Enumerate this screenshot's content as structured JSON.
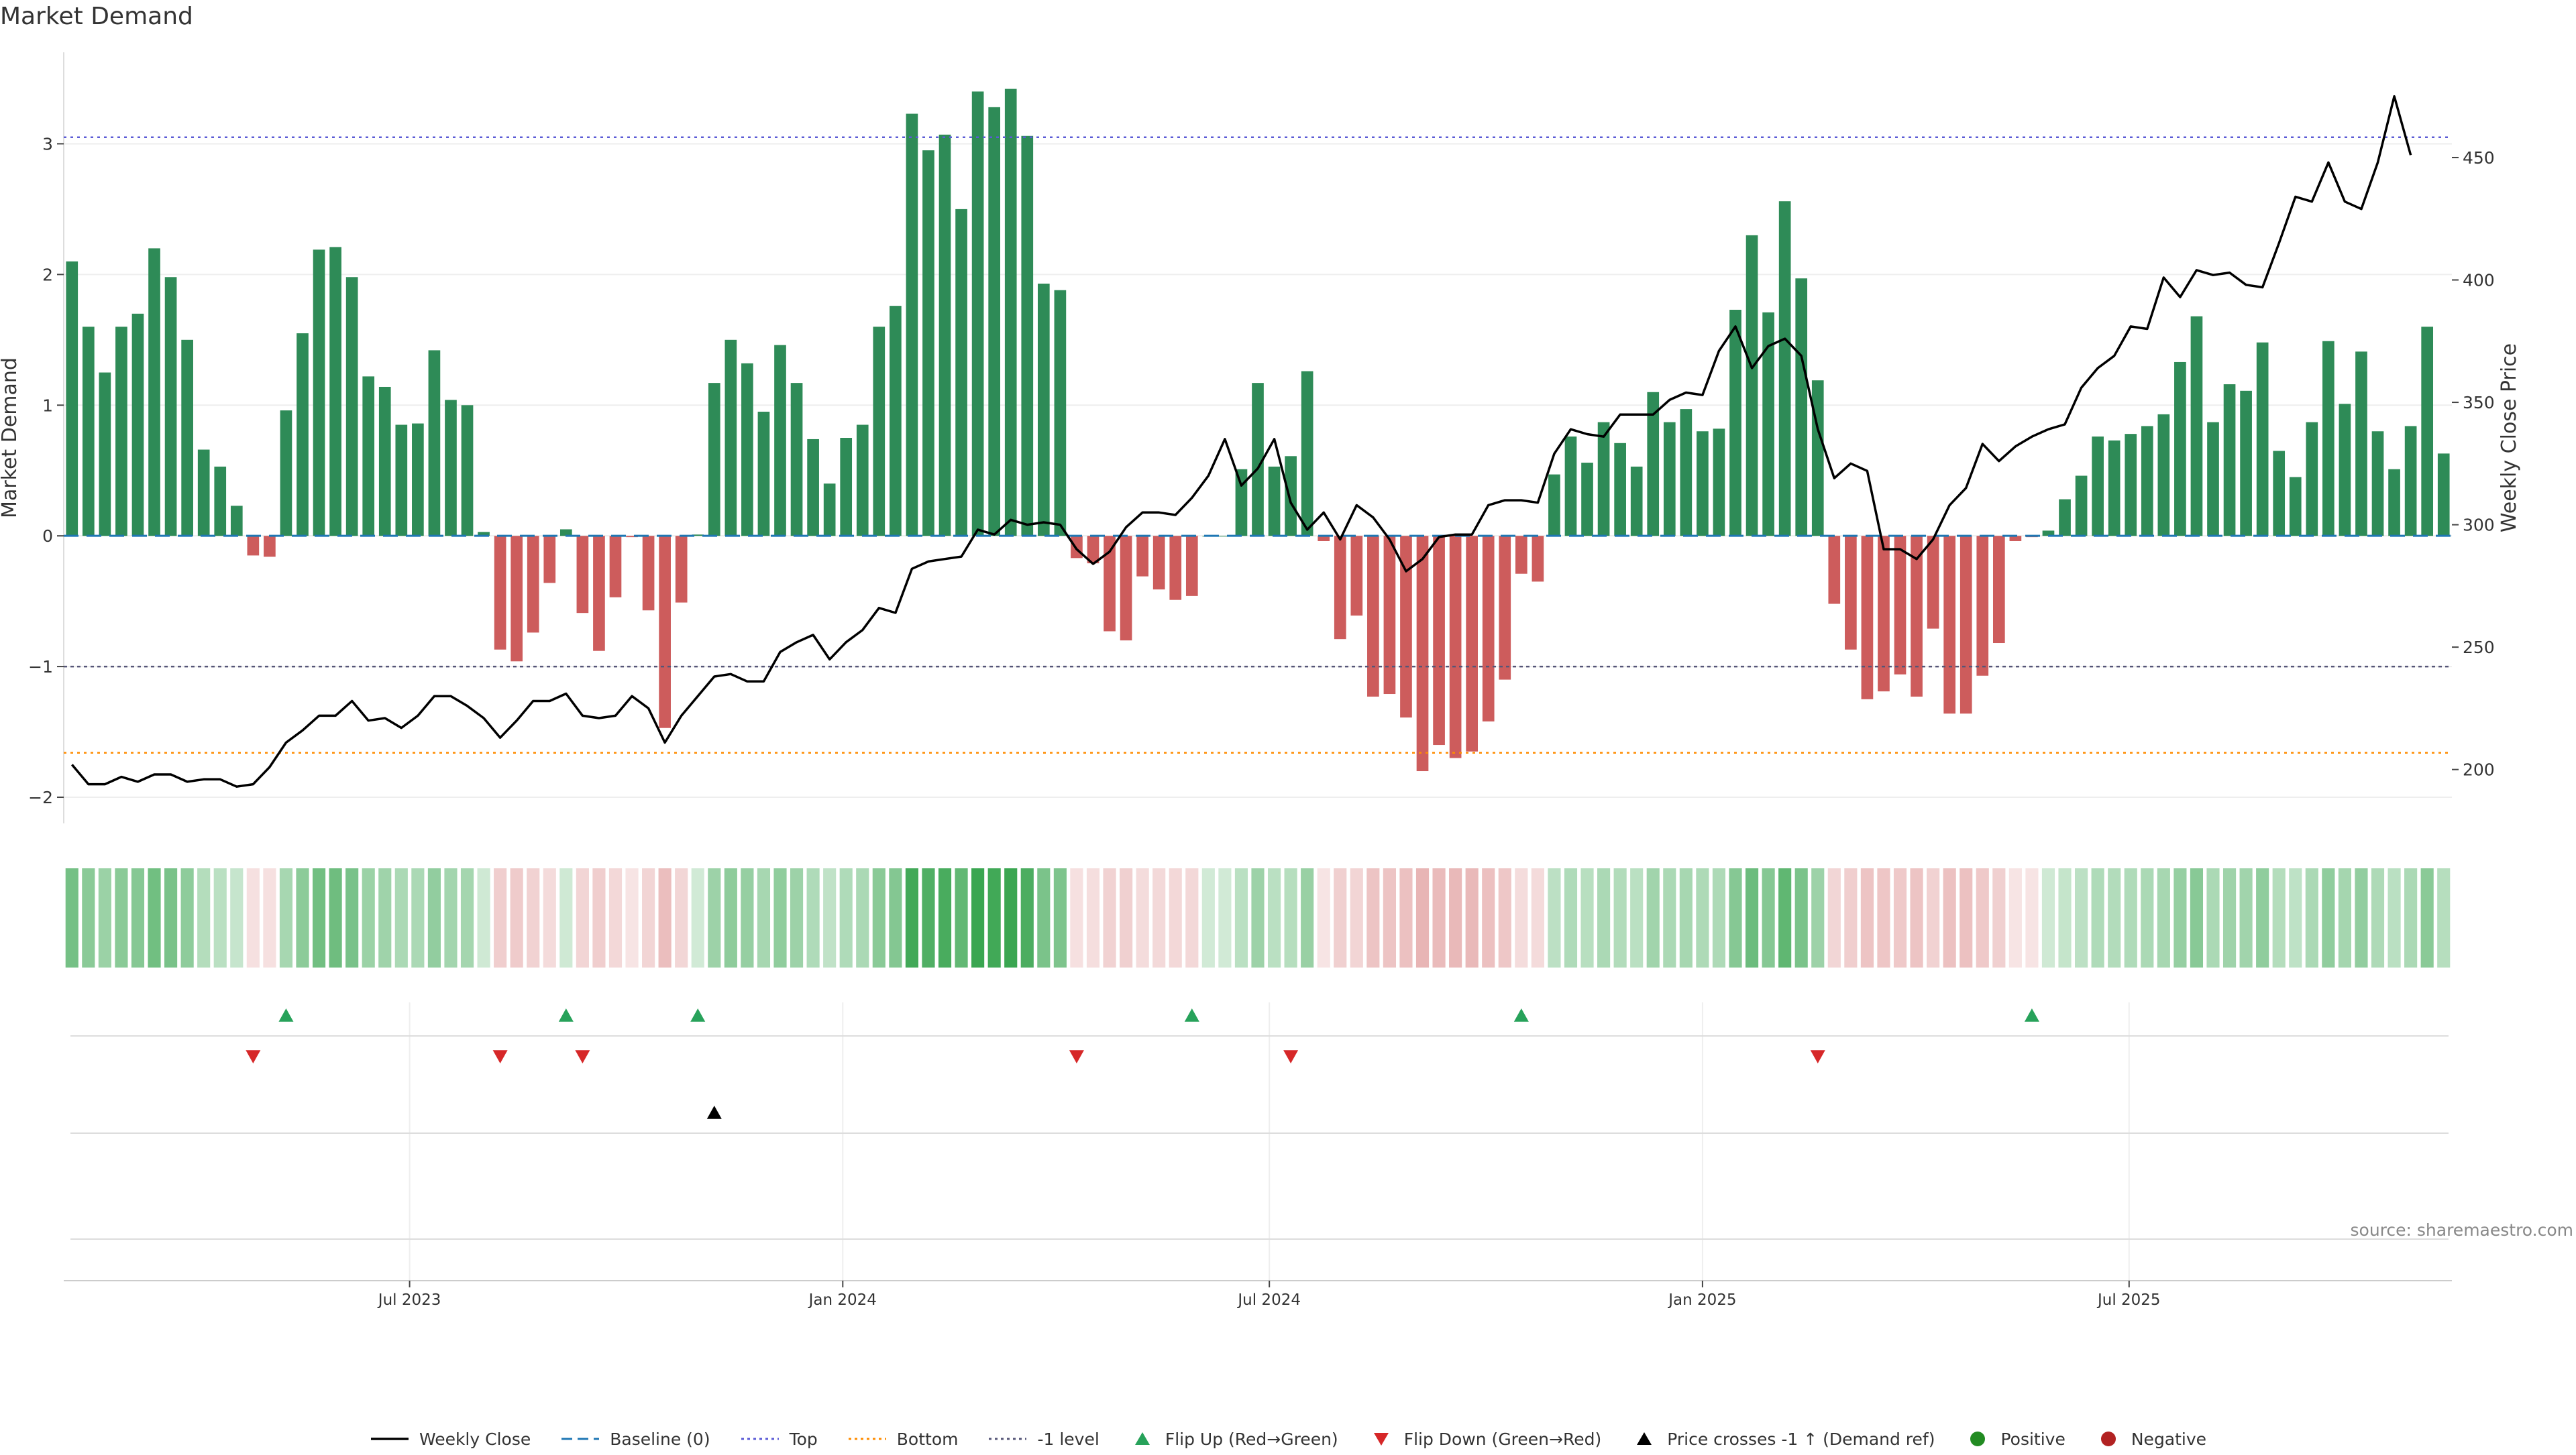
{
  "title": "Market Demand",
  "source": "source: sharemaestro.com",
  "legend": {
    "items": [
      {
        "label": "Weekly Close",
        "symbol": "line",
        "color": "#000000"
      },
      {
        "label": "Baseline (0)",
        "symbol": "dash",
        "color": "#1f77b4"
      },
      {
        "label": "Top",
        "symbol": "dot",
        "color": "#5b5bd6"
      },
      {
        "label": "Bottom",
        "symbol": "dot",
        "color": "#ff8c00"
      },
      {
        "label": "-1 level",
        "symbol": "dot",
        "color": "#555577"
      },
      {
        "label": "Flip Up (Red→Green)",
        "symbol": "tri-up",
        "color": "#27a25a"
      },
      {
        "label": "Flip Down (Green→Red)",
        "symbol": "tri-down",
        "color": "#d62728"
      },
      {
        "label": "Price crosses -1 ↑ (Demand ref)",
        "symbol": "tri-up",
        "color": "#000000"
      },
      {
        "label": "Positive",
        "symbol": "circle",
        "color": "#228b22"
      },
      {
        "label": "Negative",
        "symbol": "circle",
        "color": "#b22222"
      }
    ]
  },
  "colors": {
    "positive_bar": "#2e8b57",
    "negative_bar": "#cd5c5c",
    "price_line": "#000000"
  },
  "chart_data": {
    "type": "bar",
    "title": "Market Demand",
    "ylabel": "Market Demand",
    "y2label": "Weekly Close Price",
    "ylim": [
      -2.2,
      3.7
    ],
    "y2lim": [
      178,
      493
    ],
    "yticks": [
      -2,
      -1,
      0,
      1,
      2,
      3
    ],
    "y2ticks": [
      200,
      250,
      300,
      350,
      400,
      450
    ],
    "x_tick_labels": [
      "Jul 2023",
      "Jan 2024",
      "Jul 2024",
      "Jan 2025",
      "Jul 2025"
    ],
    "x_tick_weeks": [
      20.5,
      46.8,
      72.7,
      99.0,
      124.9
    ],
    "reference_lines": {
      "baseline": 0,
      "top": 3.05,
      "bottom": -1.66,
      "minus_one": -1
    },
    "demand": [
      2.1,
      1.6,
      1.25,
      1.6,
      1.7,
      2.2,
      1.98,
      1.5,
      0.66,
      0.53,
      0.23,
      -0.15,
      -0.16,
      0.96,
      1.55,
      2.19,
      2.21,
      1.98,
      1.22,
      1.14,
      0.85,
      0.86,
      1.42,
      1.04,
      1.0,
      0.03,
      -0.87,
      -0.96,
      -0.74,
      -0.36,
      0.05,
      -0.59,
      -0.88,
      -0.47,
      -0.01,
      -0.57,
      -1.47,
      -0.51,
      0.01,
      1.17,
      1.5,
      1.32,
      0.95,
      1.46,
      1.17,
      0.74,
      0.4,
      0.75,
      0.85,
      1.6,
      1.76,
      3.23,
      2.95,
      3.07,
      2.5,
      3.4,
      3.28,
      3.42,
      3.06,
      1.93,
      1.88,
      -0.17,
      -0.21,
      -0.73,
      -0.8,
      -0.31,
      -0.41,
      -0.49,
      -0.46,
      0.0,
      0.0,
      0.51,
      1.17,
      0.53,
      0.61,
      1.26,
      -0.04,
      -0.79,
      -0.61,
      -1.23,
      -1.21,
      -1.39,
      -1.8,
      -1.6,
      -1.7,
      -1.65,
      -1.42,
      -1.1,
      -0.29,
      -0.35,
      0.47,
      0.76,
      0.56,
      0.87,
      0.71,
      0.53,
      1.1,
      0.87,
      0.97,
      0.8,
      0.82,
      1.73,
      2.3,
      1.71,
      2.56,
      1.97,
      1.19,
      -0.52,
      -0.87,
      -1.25,
      -1.19,
      -1.06,
      -1.23,
      -0.71,
      -1.36,
      -1.36,
      -1.07,
      -0.82,
      -0.04,
      -0.01,
      0.04,
      0.28,
      0.46,
      0.76,
      0.73,
      0.78,
      0.84,
      0.93,
      1.33,
      1.68,
      0.87,
      1.16,
      1.11,
      1.48,
      0.65,
      0.45,
      0.87,
      1.49,
      1.01,
      1.41,
      0.8,
      0.51,
      0.84,
      1.6,
      0.63
    ],
    "weekly_close": [
      202,
      194,
      194,
      197,
      195,
      198,
      198,
      195,
      196,
      196,
      193,
      194,
      201,
      211,
      216,
      222,
      222,
      228,
      220,
      221,
      217,
      222,
      230,
      230,
      226,
      221,
      213,
      220,
      228,
      228,
      231,
      222,
      221,
      222,
      230,
      225,
      211,
      222,
      230,
      238,
      239,
      236,
      236,
      248,
      252,
      255,
      245,
      252,
      257,
      266,
      264,
      282,
      285,
      286,
      287,
      298,
      296,
      302,
      300,
      301,
      300,
      290,
      284,
      289,
      299,
      305,
      305,
      304,
      311,
      320,
      335,
      316,
      323,
      335,
      309,
      298,
      305,
      294,
      308,
      303,
      294,
      281,
      286,
      295,
      296,
      296,
      308,
      310,
      310,
      309,
      329,
      339,
      337,
      336,
      345,
      345,
      345,
      351,
      354,
      353,
      371,
      381,
      364,
      373,
      376,
      369,
      339,
      319,
      325,
      322,
      290,
      290,
      286,
      294,
      308,
      315,
      333,
      326,
      332,
      336,
      339,
      341,
      356,
      364,
      369,
      381,
      380,
      401,
      393,
      404,
      402,
      403,
      398,
      397,
      415,
      434,
      432,
      448,
      432,
      429,
      448,
      475,
      451
    ],
    "flip_up_weeks": [
      13,
      30,
      38,
      68,
      88,
      119
    ],
    "flip_down_weeks": [
      11,
      26,
      31,
      61,
      74,
      106
    ],
    "price_cross_weeks": [
      39
    ]
  }
}
